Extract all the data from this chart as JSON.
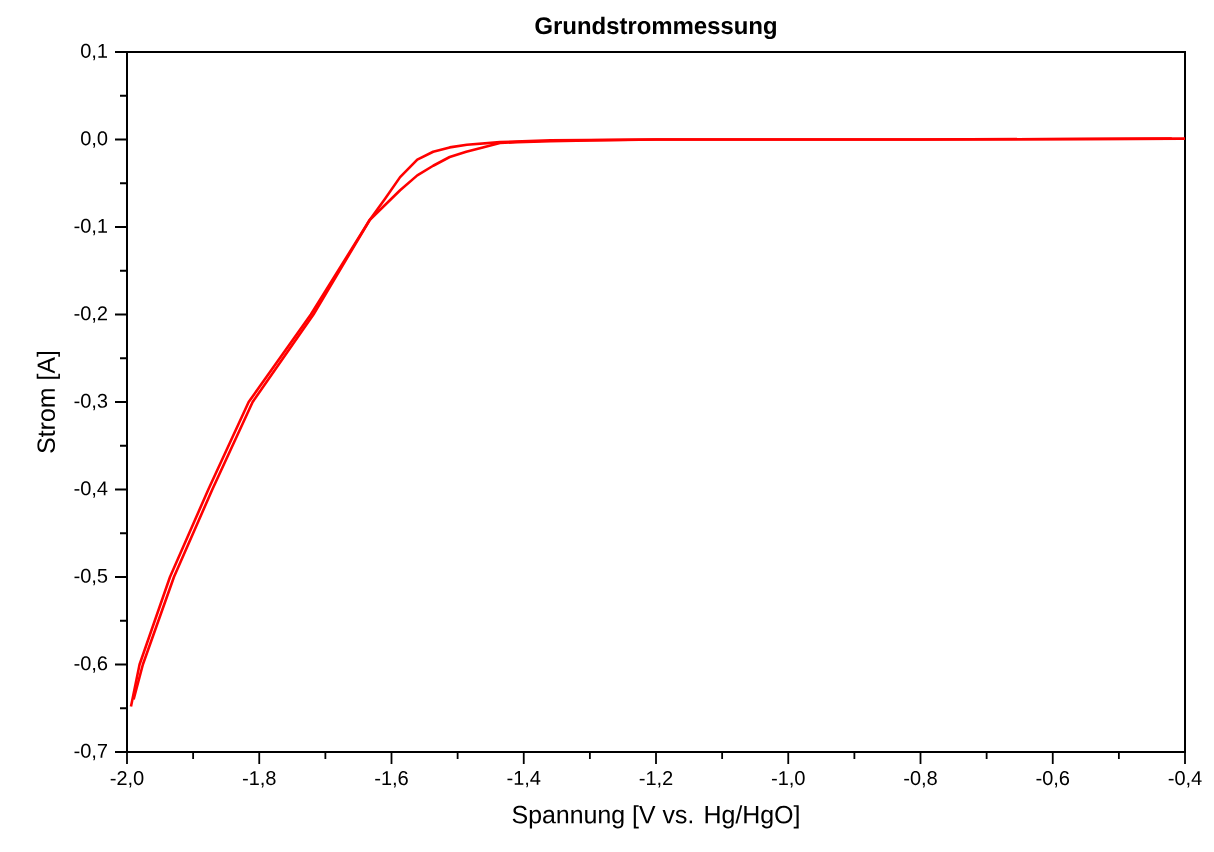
{
  "chart_data": {
    "type": "line",
    "title": "Grundstrommessung",
    "xlabel": "Spannung [V vs. Hg/HgO]",
    "ylabel": "Strom [A]",
    "series": [
      {
        "color": "#ff0000",
        "x": [
          -0.4,
          -0.8,
          -1.2,
          -1.3,
          -1.36,
          -1.41,
          -1.436,
          -1.462,
          -1.487,
          -1.512,
          -1.537,
          -1.561,
          -1.587,
          -1.61,
          -1.633,
          -1.722,
          -1.816,
          -1.877,
          -1.935,
          -1.981,
          -1.994
        ],
        "values": [
          0.001,
          0,
          0,
          -0.001,
          -0.002,
          -0.003,
          -0.004,
          -0.009,
          -0.014,
          -0.02,
          -0.03,
          -0.041,
          -0.058,
          -0.075,
          -0.092,
          -0.2,
          -0.3,
          -0.4,
          -0.5,
          -0.6,
          -0.648
        ]
      },
      {
        "color": "#ff0000",
        "x": [
          -1.99,
          -1.976,
          -1.929,
          -1.871,
          -1.81,
          -1.718,
          -1.633,
          -1.61,
          -1.587,
          -1.561,
          -1.537,
          -1.512,
          -1.486,
          -1.436,
          -1.36,
          -1.2,
          -0.8,
          -0.42
        ],
        "values": [
          -0.64,
          -0.6,
          -0.5,
          -0.4,
          -0.3,
          -0.2,
          -0.092,
          -0.068,
          -0.043,
          -0.023,
          -0.014,
          -0.009,
          -0.006,
          -0.003,
          -0.001,
          0,
          0,
          0.001
        ]
      }
    ],
    "xlim": [
      -2.0,
      -0.4
    ],
    "ylim": [
      -0.7,
      0.1
    ],
    "xticks": [
      {
        "value": -2.0,
        "label": "-2,0"
      },
      {
        "value": -1.8,
        "label": "-1,8"
      },
      {
        "value": -1.6,
        "label": "-1,6"
      },
      {
        "value": -1.4,
        "label": "-1,4"
      },
      {
        "value": -1.2,
        "label": "-1,2"
      },
      {
        "value": -1.0,
        "label": "-1,0"
      },
      {
        "value": -0.8,
        "label": "-0,8"
      },
      {
        "value": -0.6,
        "label": "-0,6"
      },
      {
        "value": -0.4,
        "label": "-0,4"
      }
    ],
    "yticks": [
      {
        "value": -0.7,
        "label": "-0,7"
      },
      {
        "value": -0.6,
        "label": "-0,6"
      },
      {
        "value": -0.5,
        "label": "-0,5"
      },
      {
        "value": -0.4,
        "label": "-0,4"
      },
      {
        "value": -0.3,
        "label": "-0,3"
      },
      {
        "value": -0.2,
        "label": "-0,2"
      },
      {
        "value": -0.1,
        "label": "-0,1"
      },
      {
        "value": 0.0,
        "label": "0,0"
      },
      {
        "value": 0.1,
        "label": "0,1"
      }
    ]
  }
}
